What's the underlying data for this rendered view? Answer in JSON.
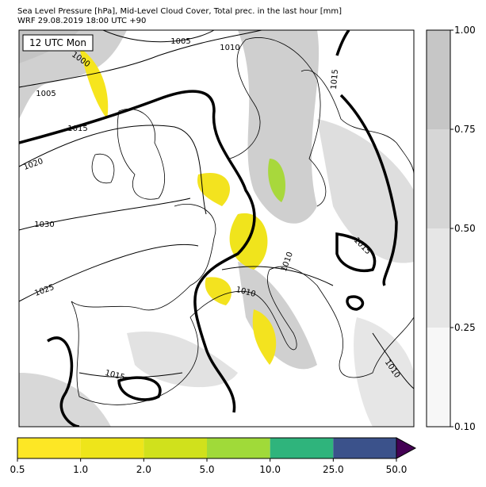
{
  "header": {
    "title_lines": [
      "Sea Level Pressure [hPa], Mid-Level Cloud Cover, Total prec. in the last hour [mm]",
      "WRF 29.08.2019 18:00 UTC +90"
    ]
  },
  "map": {
    "time_label": "12 UTC Mon",
    "contour_labels": [
      "1005",
      "1010",
      "1000",
      "1005",
      "1015",
      "1020",
      "1030",
      "1025",
      "1015",
      "1015",
      "1010",
      "1010",
      "1015",
      "1010"
    ]
  },
  "cloud_colorbar": {
    "ticks": [
      "0.10",
      "0.25",
      "0.50",
      "0.75",
      "1.00"
    ],
    "colors": [
      "#f7f7f7",
      "#e6e6e6",
      "#d6d6d6",
      "#c6c6c6"
    ]
  },
  "precip_colorbar": {
    "ticks": [
      "0.5",
      "1.0",
      "2.0",
      "5.0",
      "10.0",
      "25.0",
      "50.0"
    ],
    "colors": [
      "#fde725",
      "#eee51a",
      "#d0e11c",
      "#a0da39",
      "#2fb47c",
      "#3b528b"
    ],
    "extend_color": "#440154"
  }
}
